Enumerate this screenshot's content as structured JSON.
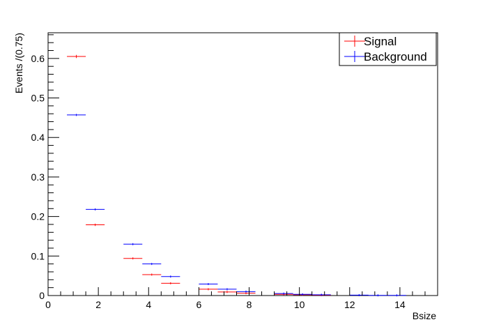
{
  "chart_data": {
    "type": "scatter",
    "style": "histogram-error-bars",
    "xlabel": "Bsize",
    "ylabel": "Events /(0.75)",
    "xlim": [
      0,
      15.5
    ],
    "ylim": [
      0,
      0.665
    ],
    "x_ticks": [
      0,
      2,
      4,
      6,
      8,
      10,
      12,
      14
    ],
    "y_ticks": [
      0,
      0.1,
      0.2,
      0.3,
      0.4,
      0.5,
      0.6
    ],
    "x_tick_labels": [
      "0",
      "2",
      "4",
      "6",
      "8",
      "10",
      "12",
      "14"
    ],
    "y_tick_labels": [
      "0",
      "0.1",
      "0.2",
      "0.3",
      "0.4",
      "0.5",
      "0.6"
    ],
    "bin_width": 0.75,
    "legend_position": "top-right",
    "grid": false,
    "series": [
      {
        "name": "Signal",
        "color": "#ff0000",
        "x": [
          1.125,
          1.875,
          3.375,
          4.125,
          4.875,
          6.375,
          7.125,
          7.875,
          9.375,
          10.125,
          10.875
        ],
        "y": [
          0.605,
          0.179,
          0.094,
          0.053,
          0.031,
          0.016,
          0.009,
          0.006,
          0.003,
          0.002,
          0.001
        ],
        "yerr": [
          0.004,
          0.003,
          0.002,
          0.002,
          0.001,
          0.001,
          0.001,
          0.001,
          0.001,
          0.0005,
          0.0005
        ]
      },
      {
        "name": "Background",
        "color": "#0000ff",
        "x": [
          1.125,
          1.875,
          3.375,
          4.125,
          4.875,
          6.375,
          7.125,
          7.875,
          9.375,
          10.125,
          10.875,
          12.375,
          13.125,
          13.875
        ],
        "y": [
          0.457,
          0.218,
          0.13,
          0.08,
          0.048,
          0.029,
          0.016,
          0.01,
          0.005,
          0.003,
          0.002,
          0.001,
          0.0005,
          0.0005
        ],
        "yerr": [
          0.001,
          0.001,
          0.001,
          0.001,
          0.001,
          0.001,
          0.0005,
          0.0005,
          0.0005,
          0.0005,
          0.0005,
          0.0005,
          0.0005,
          0.0005
        ]
      }
    ]
  }
}
